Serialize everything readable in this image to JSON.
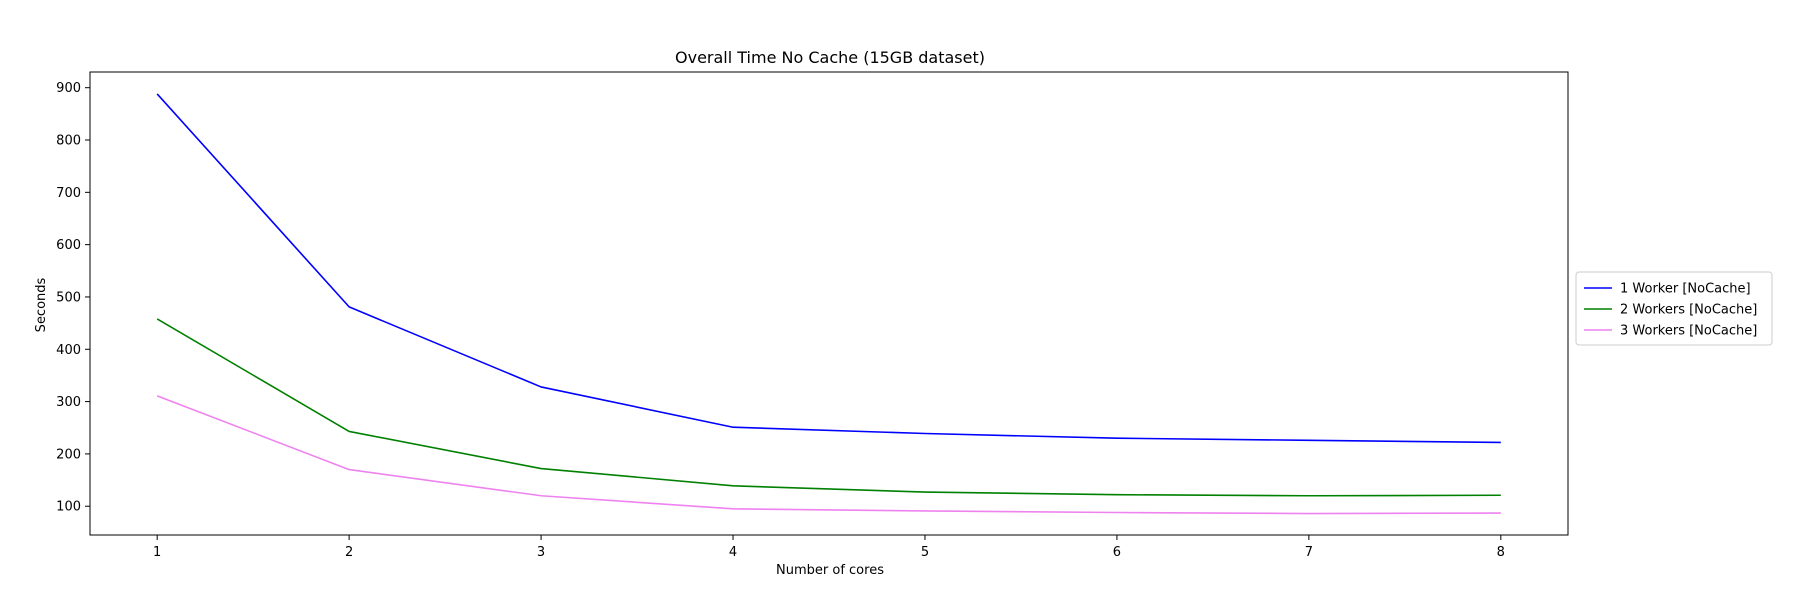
{
  "chart_data": {
    "type": "line",
    "title": "Overall Time No Cache (15GB dataset)",
    "xlabel": "Number of cores",
    "ylabel": "Seconds",
    "x": [
      1,
      2,
      3,
      4,
      5,
      6,
      7,
      8
    ],
    "xlim": [
      0.65,
      8.35
    ],
    "ylim": [
      45,
      930
    ],
    "yticks": [
      100,
      200,
      300,
      400,
      500,
      600,
      700,
      800,
      900
    ],
    "grid": false,
    "legend_position": "right",
    "series": [
      {
        "name": "1 Worker [NoCache]",
        "color": "#0000ff",
        "values": [
          888,
          481,
          328,
          251,
          239,
          230,
          226,
          222
        ]
      },
      {
        "name": "2 Workers [NoCache]",
        "color": "#008000",
        "values": [
          458,
          243,
          172,
          139,
          127,
          122,
          120,
          121
        ]
      },
      {
        "name": "3 Workers [NoCache]",
        "color": "#ee82ee",
        "values": [
          311,
          170,
          120,
          95,
          91,
          88,
          86,
          87
        ]
      }
    ]
  }
}
